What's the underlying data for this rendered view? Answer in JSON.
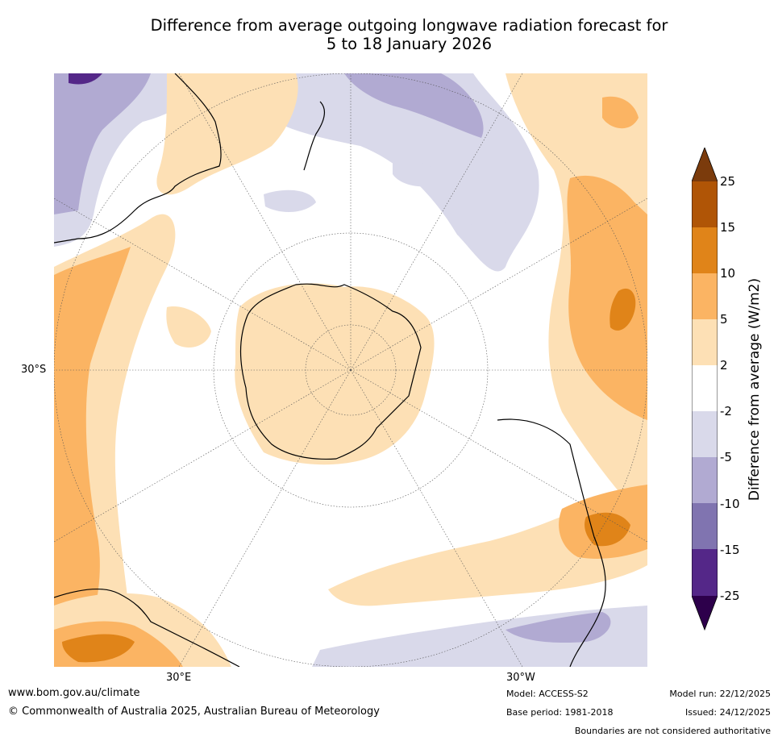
{
  "title": {
    "line1": "Difference from average outgoing longwave radiation forecast for",
    "line2": "5 to 18 January 2026"
  },
  "map": {
    "projection": "South polar stereographic",
    "lat_label": "30°S",
    "lon_labels": {
      "east": "30°E",
      "west": "30°W"
    }
  },
  "colorbar": {
    "title": "Difference from average (W/m2)",
    "ticks": [
      "25",
      "15",
      "10",
      "5",
      "2",
      "-2",
      "-5",
      "-10",
      "-15",
      "-25"
    ],
    "colors": {
      "c25plus": "#7b3b0c",
      "c15_25": "#b05506",
      "c10_15": "#e08419",
      "c5_10": "#fbb463",
      "c2_5": "#fde0b5",
      "cm2_2": "#ffffff",
      "cm5_m2": "#d9d9ea",
      "cm10_m5": "#b1aad2",
      "cm15_m10": "#8074b0",
      "cm25_m15": "#542788",
      "cm25minus": "#2d004b"
    }
  },
  "footer": {
    "website": "www.bom.gov.au/climate",
    "copyright": "© Commonwealth of Australia 2025, Australian Bureau of Meteorology",
    "model": "Model: ACCESS-S2",
    "base_period": "Base period: 1981-2018",
    "model_run": "Model run: 22/12/2025",
    "issued": "Issued: 24/12/2025",
    "disclaimer": "Boundaries are not considered authoritative"
  }
}
